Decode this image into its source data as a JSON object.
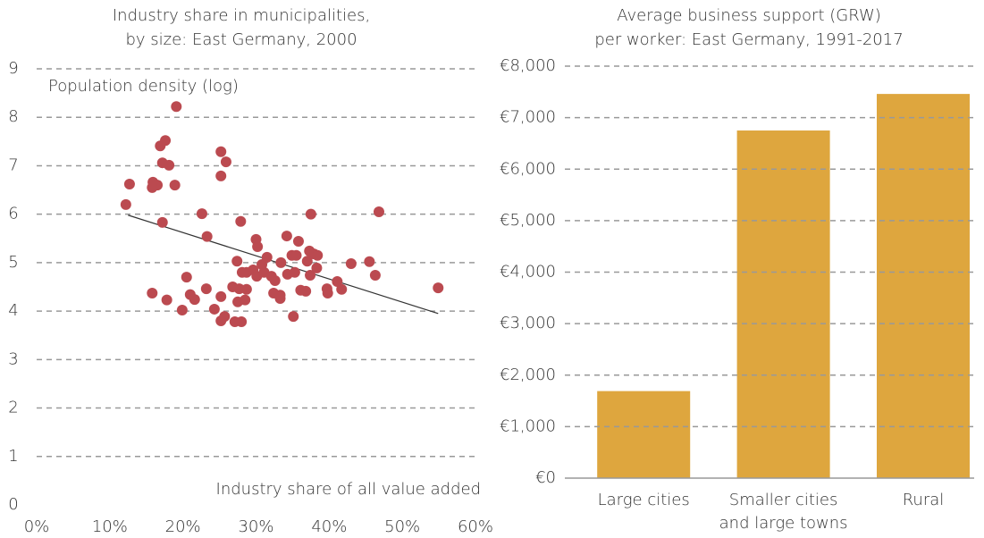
{
  "chart_data": [
    {
      "type": "scatter",
      "title": [
        "Industry share in municipalities,",
        "by size: East Germany, 2000"
      ],
      "ylabel": "Population density (log)",
      "xlabel": "Industry share of all value added",
      "color": "#bb4a50",
      "line_color": "#333333",
      "grid": true,
      "xlim": [
        0,
        60
      ],
      "ylim": [
        0,
        9
      ],
      "xticks": [
        {
          "value": 0,
          "label": "0%"
        },
        {
          "value": 10,
          "label": "10%"
        },
        {
          "value": 20,
          "label": "20%"
        },
        {
          "value": 30,
          "label": "30%"
        },
        {
          "value": 40,
          "label": "40%"
        },
        {
          "value": 50,
          "label": "50%"
        },
        {
          "value": 60,
          "label": "60%"
        }
      ],
      "yticks": [
        0,
        1,
        2,
        3,
        4,
        5,
        6,
        7,
        8,
        9
      ],
      "x": [
        19.1,
        16.9,
        17.6,
        17.2,
        18.1,
        12.7,
        15.9,
        16.5,
        15.8,
        18.9,
        12.2,
        17.2,
        22.6,
        23.3,
        25.2,
        25.9,
        25.2,
        27.9,
        37.5,
        46.8,
        30.0,
        30.2,
        34.2,
        35.8,
        37.3,
        37.9,
        38.4,
        27.4,
        31.5,
        30.8,
        33.4,
        34.9,
        35.5,
        37.0,
        38.3,
        43.0,
        45.5,
        20.5,
        28.1,
        28.7,
        29.6,
        30.1,
        31.1,
        32.1,
        32.6,
        34.3,
        35.3,
        37.4,
        39.7,
        39.8,
        41.1,
        41.7,
        46.3,
        54.9,
        15.8,
        17.8,
        21.0,
        21.6,
        23.2,
        26.8,
        27.7,
        28.7,
        28.5,
        27.5,
        25.2,
        32.4,
        33.3,
        33.3,
        36.1,
        36.8,
        19.9,
        24.3,
        25.7,
        25.2,
        27.1,
        28.0,
        35.1
      ],
      "values": [
        8.22,
        7.41,
        7.52,
        7.06,
        7.01,
        6.62,
        6.66,
        6.6,
        6.55,
        6.6,
        6.2,
        5.83,
        6.01,
        5.54,
        7.29,
        7.08,
        6.79,
        5.85,
        6.0,
        6.05,
        5.48,
        5.33,
        5.55,
        5.44,
        5.24,
        5.18,
        5.15,
        5.03,
        5.11,
        4.96,
        5.0,
        5.15,
        5.15,
        5.03,
        4.89,
        4.98,
        5.02,
        4.7,
        4.8,
        4.8,
        4.85,
        4.72,
        4.8,
        4.72,
        4.63,
        4.76,
        4.8,
        4.74,
        4.46,
        4.37,
        4.61,
        4.45,
        4.74,
        4.48,
        4.37,
        4.23,
        4.34,
        4.24,
        4.46,
        4.5,
        4.46,
        4.45,
        4.23,
        4.19,
        4.3,
        4.37,
        4.26,
        4.33,
        4.43,
        4.41,
        4.02,
        4.04,
        3.89,
        3.8,
        3.78,
        3.78,
        3.89
      ],
      "trendline": {
        "x": [
          12.5,
          54.9
        ],
        "y": [
          5.98,
          3.95
        ]
      }
    },
    {
      "type": "bar",
      "title": [
        "Average business support (GRW)",
        "per worker: East Germany, 1991-2017"
      ],
      "color": "#dea63e",
      "grid": true,
      "categories": [
        [
          "Large cities"
        ],
        [
          "Smaller cities",
          "and large towns"
        ],
        [
          "Rural"
        ]
      ],
      "values": [
        1690,
        6750,
        7460
      ],
      "ylim": [
        0,
        8000
      ],
      "yticks": [
        {
          "value": 0,
          "label": "€0"
        },
        {
          "value": 1000,
          "label": "€1,000"
        },
        {
          "value": 2000,
          "label": "€2,000"
        },
        {
          "value": 3000,
          "label": "€3,000"
        },
        {
          "value": 4000,
          "label": "€4,000"
        },
        {
          "value": 5000,
          "label": "€5,000"
        },
        {
          "value": 6000,
          "label": "€6,000"
        },
        {
          "value": 7000,
          "label": "€7,000"
        },
        {
          "value": 8000,
          "label": "€8,000"
        }
      ]
    }
  ]
}
